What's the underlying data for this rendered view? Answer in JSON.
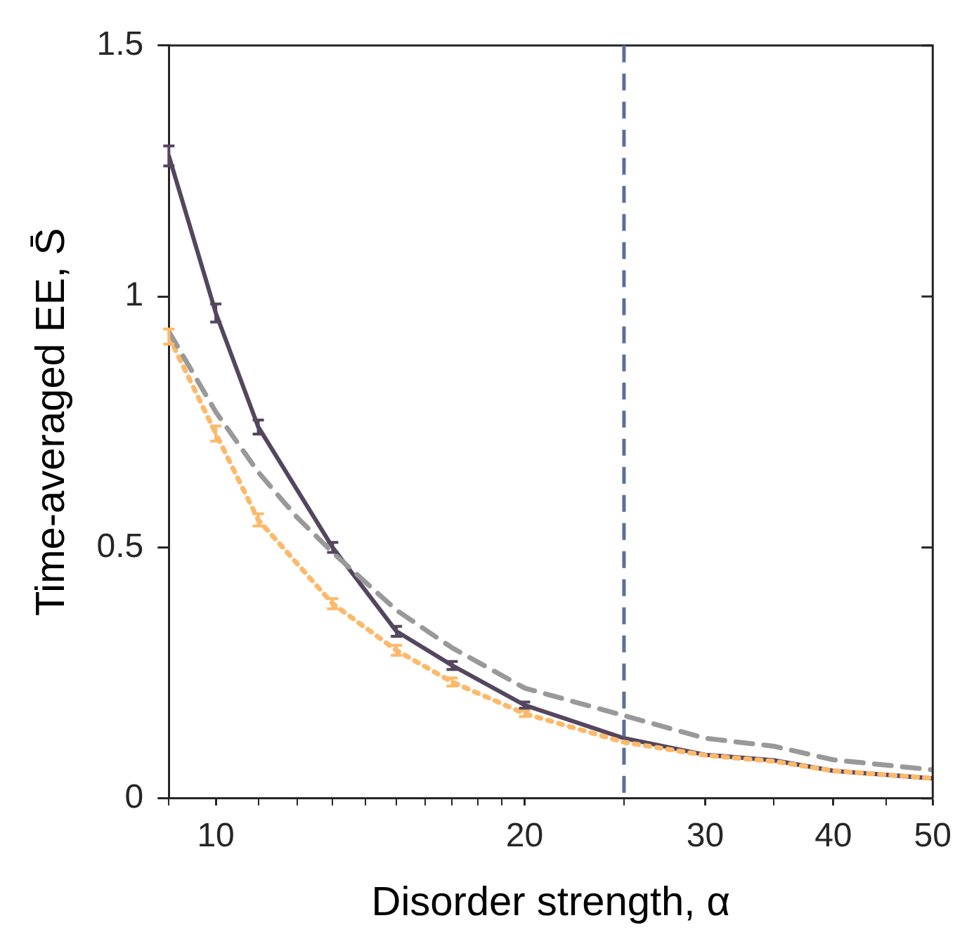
{
  "chart_data": {
    "type": "line",
    "xlabel": "Disorder strength, α",
    "ylabel": "Time-averaged EE, S̄",
    "log": "x",
    "xlim": [
      9,
      50
    ],
    "xticks": [
      {
        "value": 9,
        "label": null
      },
      10,
      {
        "value": 11,
        "label": null
      },
      {
        "value": 12,
        "label": null
      },
      {
        "value": 13,
        "label": null
      },
      {
        "value": 14,
        "label": null
      },
      {
        "value": 15,
        "label": null
      },
      {
        "value": 16,
        "label": null
      },
      {
        "value": 17,
        "label": null
      },
      {
        "value": 18,
        "label": null
      },
      {
        "value": 19,
        "label": null
      },
      20,
      {
        "value": 25,
        "label": null
      },
      30,
      {
        "value": 35,
        "label": null
      },
      40,
      {
        "value": 45,
        "label": null
      },
      50
    ],
    "ylim": [
      0,
      1.5
    ],
    "yticks": [
      0,
      0.5,
      1,
      1.5
    ],
    "grid": false,
    "legend": false,
    "series": [
      {
        "color": "#999999",
        "line_style": "dashed",
        "x": [
          9,
          10,
          11,
          12,
          13,
          15,
          17,
          20,
          25,
          30,
          35,
          40,
          50
        ],
        "values": [
          0.93,
          0.77,
          0.65,
          0.56,
          0.49,
          0.375,
          0.3,
          0.22,
          0.165,
          0.12,
          0.104,
          0.077,
          0.057
        ]
      },
      {
        "color": "#fdb96a",
        "line_style": "dotted",
        "x": [
          9,
          10,
          11,
          13,
          15,
          17,
          20,
          25,
          30,
          35,
          40,
          50
        ],
        "values": [
          0.92,
          0.727,
          0.555,
          0.388,
          0.295,
          0.232,
          0.169,
          0.112,
          0.086,
          0.074,
          0.055,
          0.04
        ],
        "errors": [
          0.015,
          0.015,
          0.012,
          0.01,
          0.01,
          0.008,
          0.006,
          null,
          null,
          null,
          null,
          null
        ]
      },
      {
        "color": "#54465e",
        "line_style": "solid",
        "x": [
          9,
          10,
          11,
          13,
          15,
          17,
          20,
          25,
          30,
          35,
          40,
          50
        ],
        "values": [
          1.28,
          0.967,
          0.74,
          0.5,
          0.333,
          0.265,
          0.186,
          0.12,
          0.087,
          0.076,
          0.055,
          0.04
        ],
        "errors": [
          0.02,
          0.018,
          0.014,
          0.01,
          0.01,
          0.008,
          0.006,
          null,
          null,
          null,
          null,
          null
        ]
      }
    ],
    "ref_lines": [
      {
        "axis": "x",
        "value": 25,
        "color": "#5a6f9a",
        "line_style": "dashed"
      }
    ]
  }
}
